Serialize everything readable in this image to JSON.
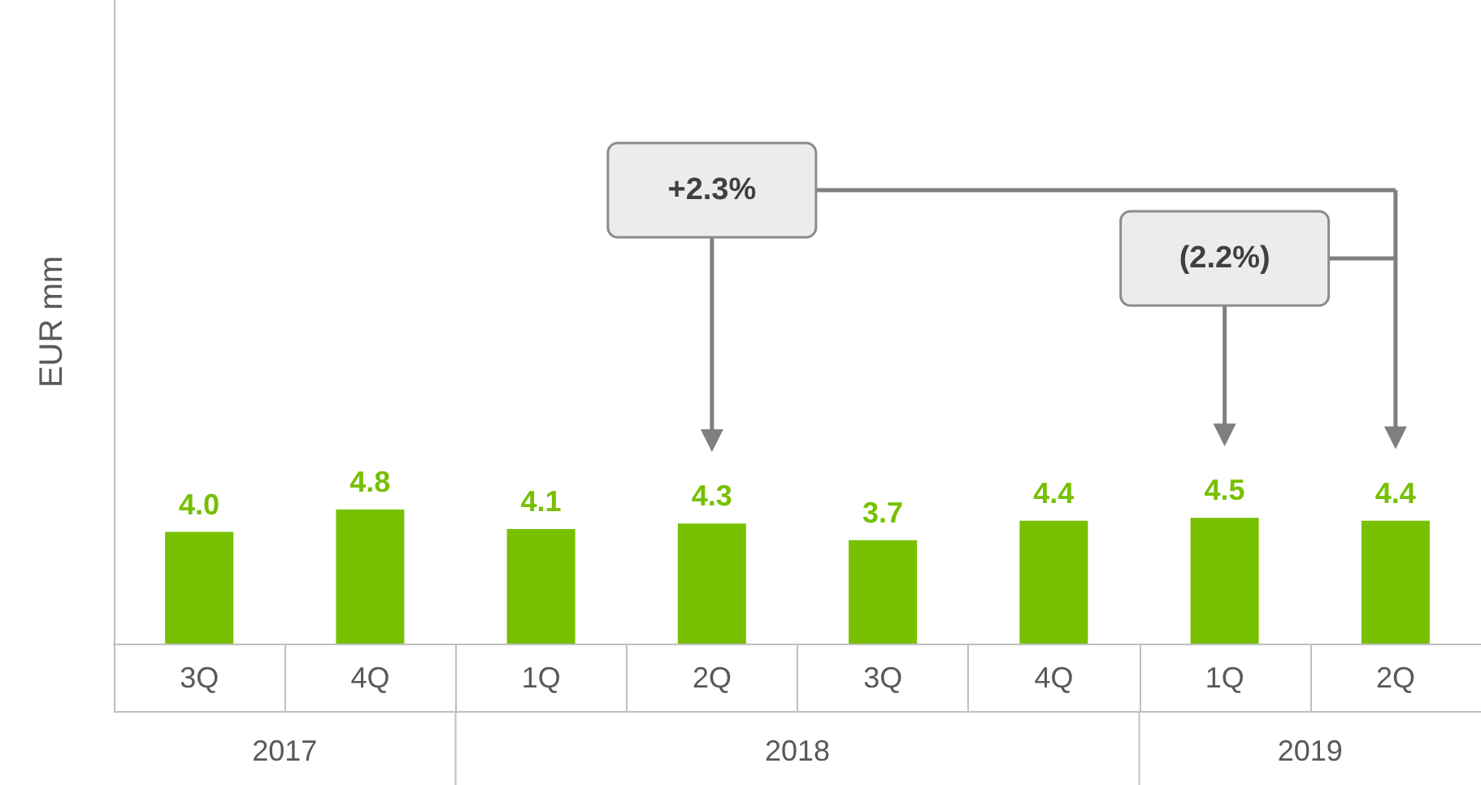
{
  "chart_data": {
    "type": "bar",
    "ylabel": "EUR mm",
    "categories": [
      "3Q",
      "4Q",
      "1Q",
      "2Q",
      "3Q",
      "4Q",
      "1Q",
      "2Q"
    ],
    "values": [
      4.0,
      4.8,
      4.1,
      4.3,
      3.7,
      4.4,
      4.5,
      4.4
    ],
    "color": "#77c000",
    "value_labels": [
      "4.0",
      "4.8",
      "4.1",
      "4.3",
      "3.7",
      "4.4",
      "4.5",
      "4.4"
    ],
    "tick_labels": "x",
    "annotations": [
      "+2.3%",
      "(2.2%)",
      "2017",
      "2018",
      "2019"
    ]
  }
}
